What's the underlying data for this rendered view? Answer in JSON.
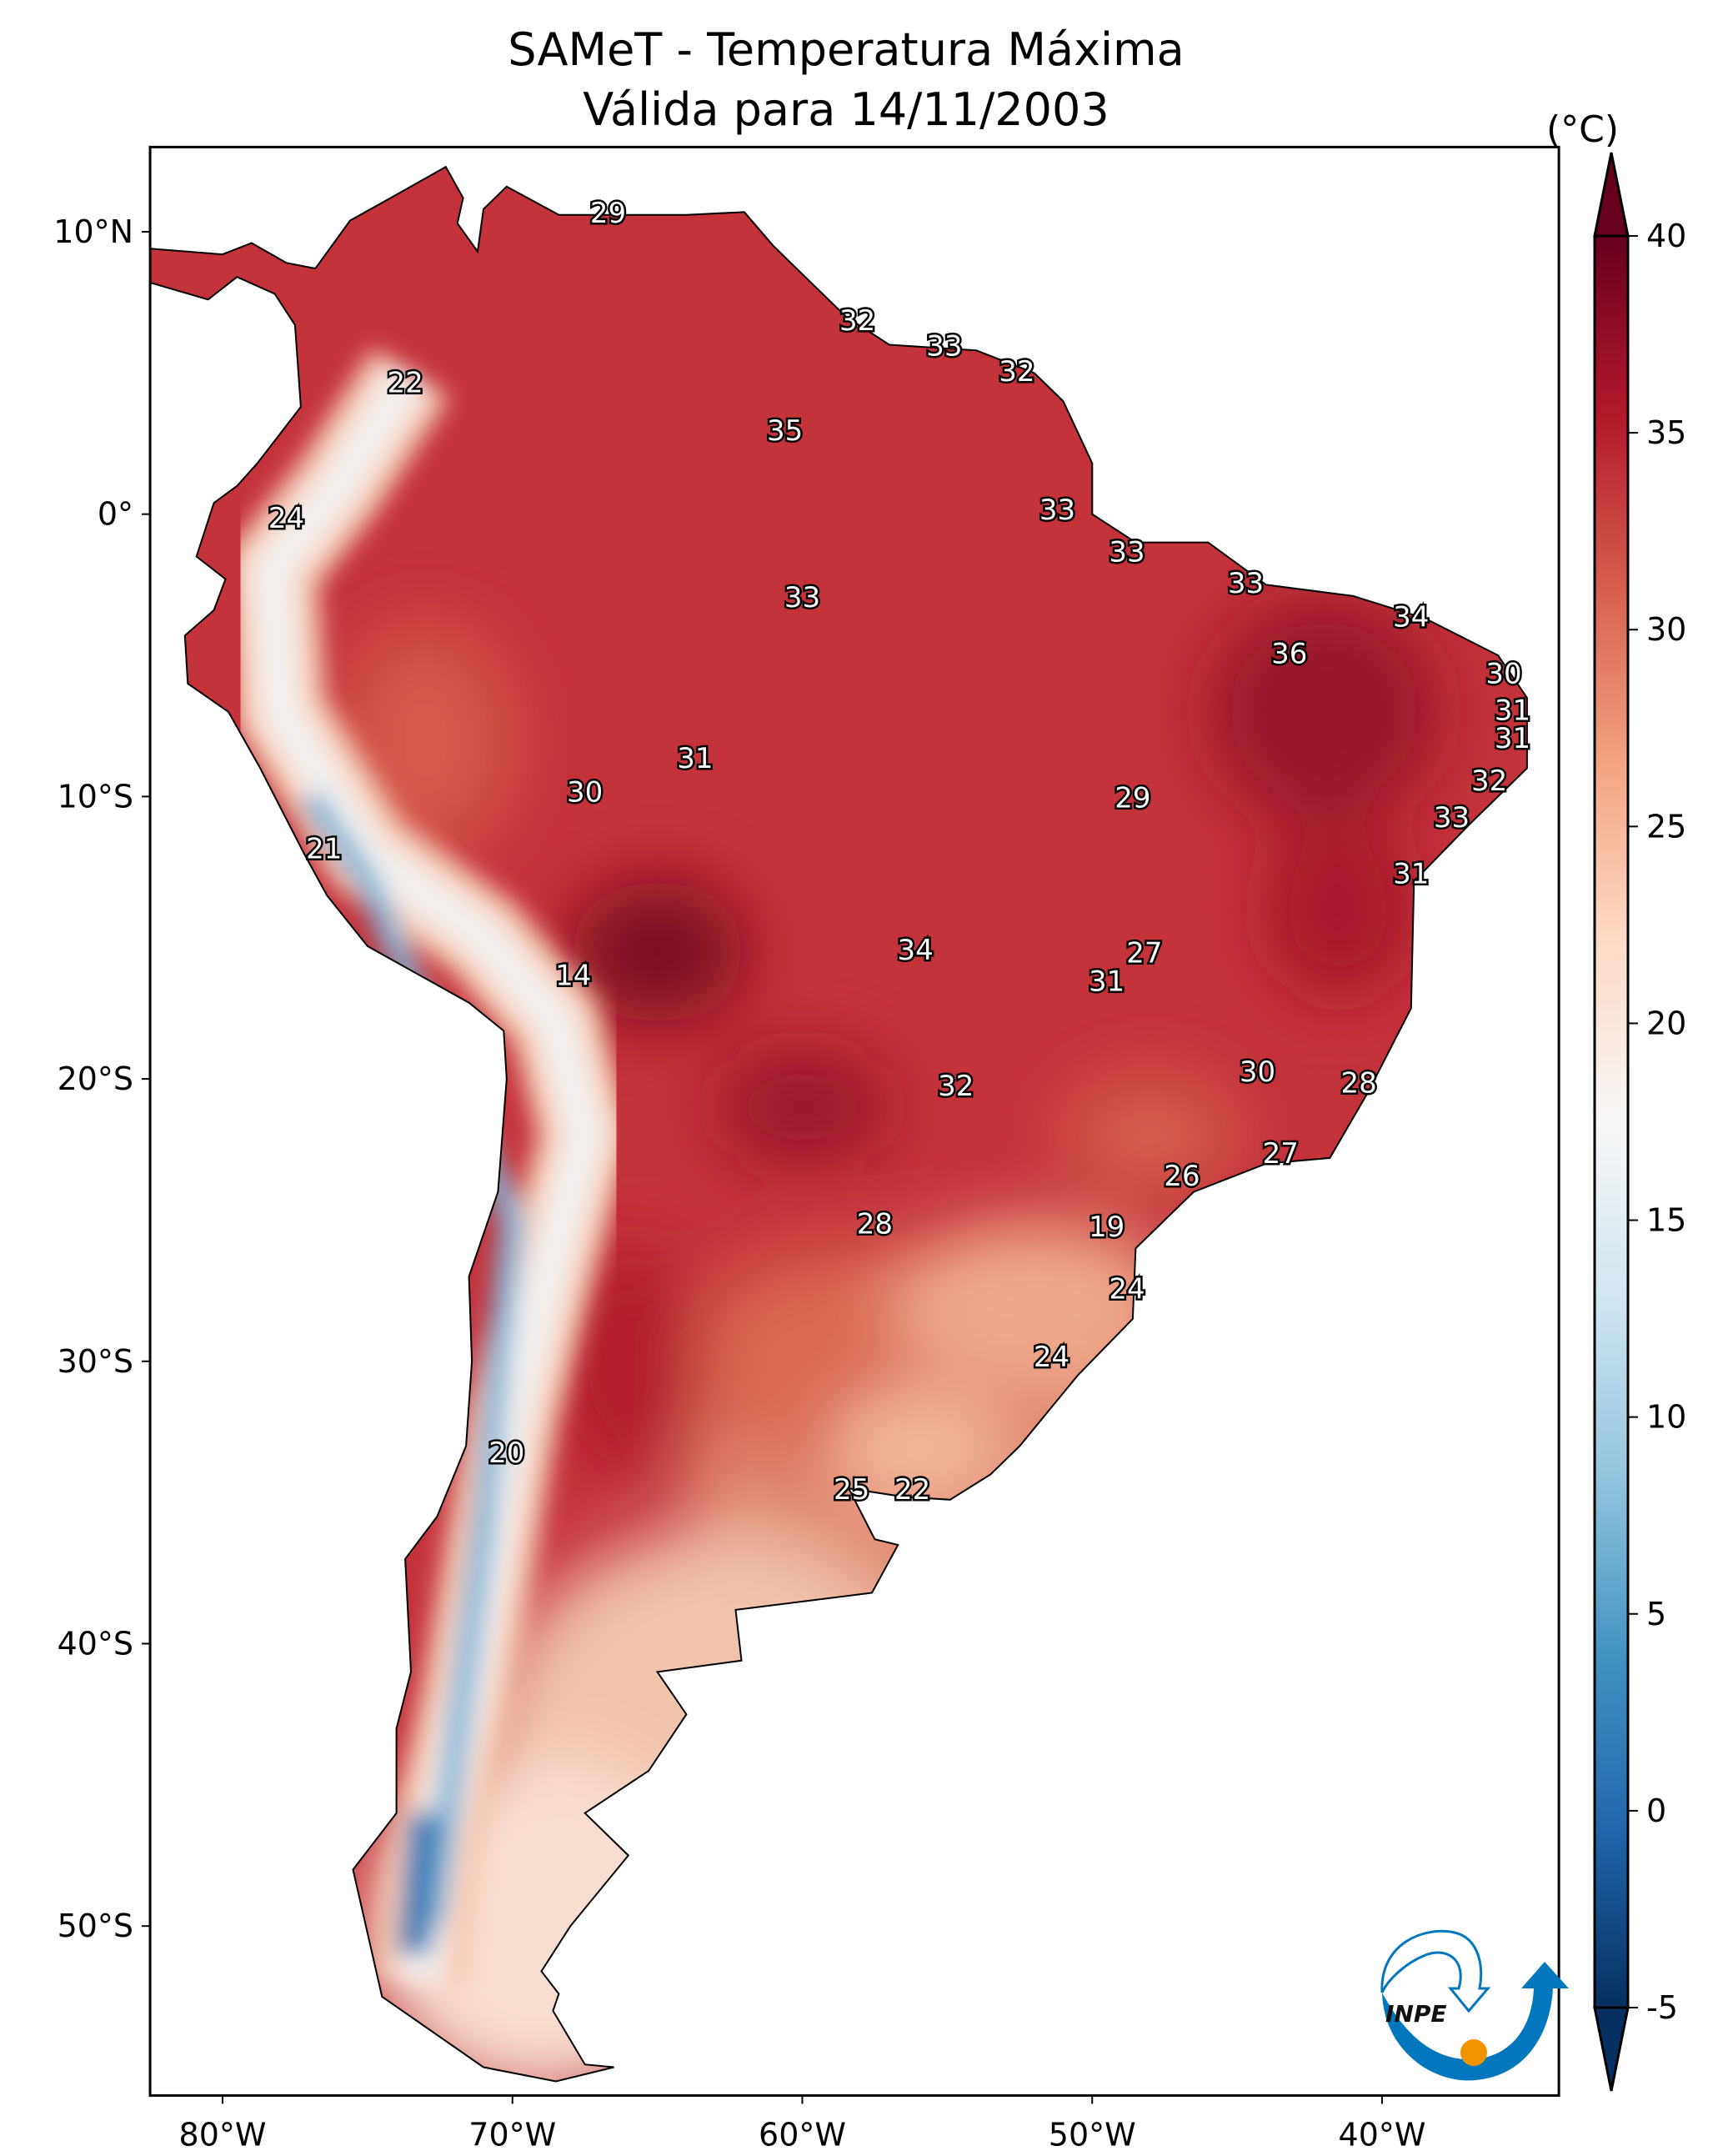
{
  "title": {
    "line1": "SAMeT - Temperatura Máxima",
    "line2": "Válida para 14/11/2003"
  },
  "colorbar": {
    "unit": "(°C)",
    "ticks": [
      "-5",
      "0",
      "5",
      "10",
      "15",
      "20",
      "25",
      "30",
      "35",
      "40"
    ],
    "range": [
      -5,
      40
    ],
    "extend": "both",
    "colormap": "RdBu_r",
    "colors": [
      "#053061",
      "#2166ac",
      "#4393c3",
      "#92c5de",
      "#d1e5f0",
      "#f7f7f7",
      "#fddbc7",
      "#f4a582",
      "#d6604d",
      "#b2182b",
      "#67001f"
    ]
  },
  "axes": {
    "lon_ticks": [
      {
        "value": -80,
        "label": "80°W"
      },
      {
        "value": -70,
        "label": "70°W"
      },
      {
        "value": -60,
        "label": "60°W"
      },
      {
        "value": -50,
        "label": "50°W"
      },
      {
        "value": -40,
        "label": "40°W"
      }
    ],
    "lat_ticks": [
      {
        "value": 10,
        "label": "10°N"
      },
      {
        "value": 0,
        "label": "0°"
      },
      {
        "value": -10,
        "label": "10°S"
      },
      {
        "value": -20,
        "label": "20°S"
      },
      {
        "value": -30,
        "label": "30°S"
      },
      {
        "value": -40,
        "label": "40°S"
      },
      {
        "value": -50,
        "label": "50°S"
      }
    ],
    "lon_range": [
      -82.5,
      -33.9
    ],
    "lat_range": [
      -56,
      13
    ]
  },
  "stations": [
    {
      "v": "29",
      "lon": -66.7,
      "lat": 10.6
    },
    {
      "v": "32",
      "lon": -58.1,
      "lat": 6.8
    },
    {
      "v": "33",
      "lon": -55.1,
      "lat": 5.9
    },
    {
      "v": "32",
      "lon": -52.6,
      "lat": 5.0
    },
    {
      "v": "22",
      "lon": -73.7,
      "lat": 4.6
    },
    {
      "v": "35",
      "lon": -60.6,
      "lat": 2.9
    },
    {
      "v": "33",
      "lon": -51.2,
      "lat": 0.1
    },
    {
      "v": "24",
      "lon": -77.8,
      "lat": -0.2
    },
    {
      "v": "33",
      "lon": -48.8,
      "lat": -1.4
    },
    {
      "v": "33",
      "lon": -60.0,
      "lat": -3.0
    },
    {
      "v": "33",
      "lon": -44.7,
      "lat": -2.5
    },
    {
      "v": "34",
      "lon": -39.0,
      "lat": -3.7
    },
    {
      "v": "36",
      "lon": -43.2,
      "lat": -5.0
    },
    {
      "v": "30",
      "lon": -35.8,
      "lat": -5.7
    },
    {
      "v": "31",
      "lon": -35.5,
      "lat": -7.0
    },
    {
      "v": "31",
      "lon": -35.5,
      "lat": -8.0
    },
    {
      "v": "31",
      "lon": -63.7,
      "lat": -8.7
    },
    {
      "v": "30",
      "lon": -67.5,
      "lat": -9.9
    },
    {
      "v": "29",
      "lon": -48.6,
      "lat": -10.1
    },
    {
      "v": "32",
      "lon": -36.3,
      "lat": -9.5
    },
    {
      "v": "21",
      "lon": -76.5,
      "lat": -11.9
    },
    {
      "v": "33",
      "lon": -37.6,
      "lat": -10.8
    },
    {
      "v": "31",
      "lon": -39.0,
      "lat": -12.8
    },
    {
      "v": "14",
      "lon": -67.9,
      "lat": -16.4
    },
    {
      "v": "34",
      "lon": -56.1,
      "lat": -15.5
    },
    {
      "v": "27",
      "lon": -48.2,
      "lat": -15.6
    },
    {
      "v": "31",
      "lon": -49.5,
      "lat": -16.6
    },
    {
      "v": "30",
      "lon": -44.3,
      "lat": -19.8
    },
    {
      "v": "28",
      "lon": -40.8,
      "lat": -20.2
    },
    {
      "v": "32",
      "lon": -54.7,
      "lat": -20.3
    },
    {
      "v": "26",
      "lon": -46.9,
      "lat": -23.5
    },
    {
      "v": "27",
      "lon": -43.5,
      "lat": -22.7
    },
    {
      "v": "28",
      "lon": -57.5,
      "lat": -25.2
    },
    {
      "v": "19",
      "lon": -49.5,
      "lat": -25.3
    },
    {
      "v": "24",
      "lon": -48.8,
      "lat": -27.5
    },
    {
      "v": "24",
      "lon": -51.4,
      "lat": -29.9
    },
    {
      "v": "20",
      "lon": -70.2,
      "lat": -33.3
    },
    {
      "v": "25",
      "lon": -58.3,
      "lat": -34.6
    },
    {
      "v": "22",
      "lon": -56.2,
      "lat": -34.6
    }
  ],
  "logo": {
    "text": "INPE",
    "colors": {
      "blue": "#0277bd",
      "orange": "#f29400"
    }
  }
}
